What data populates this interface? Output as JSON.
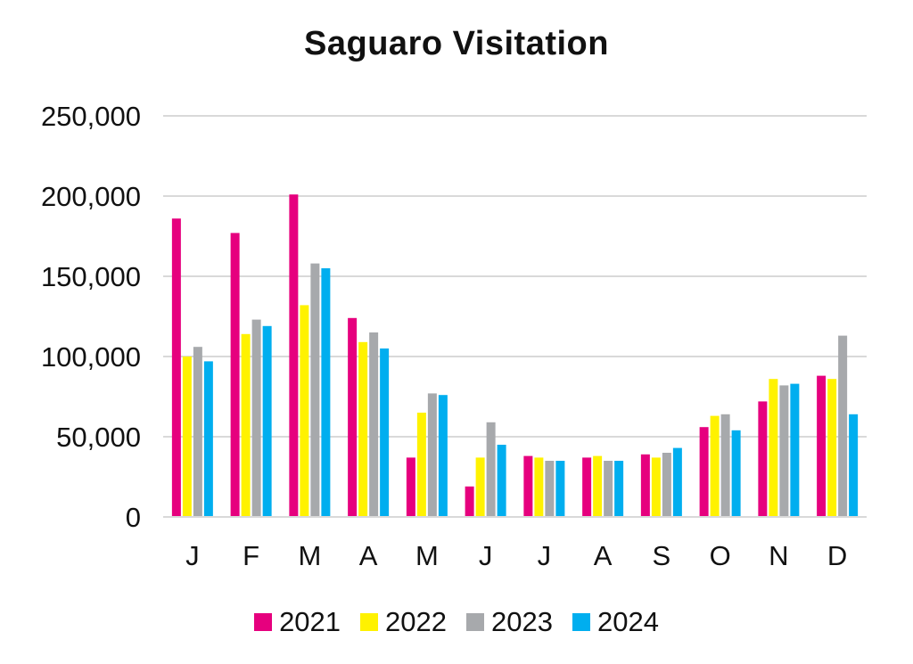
{
  "chart_data": {
    "type": "bar",
    "title": "Saguaro Visitation",
    "categories": [
      "J",
      "F",
      "M",
      "A",
      "M",
      "J",
      "J",
      "A",
      "S",
      "O",
      "N",
      "D"
    ],
    "ylim": [
      0,
      250000
    ],
    "yticks": [
      0,
      50000,
      100000,
      150000,
      200000,
      250000
    ],
    "ytick_labels": [
      "0",
      "50,000",
      "100,000",
      "150,000",
      "200,000",
      "250,000"
    ],
    "grid": true,
    "legend_position": "bottom",
    "series": [
      {
        "name": "2021",
        "color": "#e6007e",
        "values": [
          186000,
          177000,
          201000,
          124000,
          37000,
          19000,
          38000,
          37000,
          39000,
          56000,
          72000,
          88000
        ]
      },
      {
        "name": "2022",
        "color": "#fff200",
        "values": [
          100000,
          114000,
          132000,
          109000,
          65000,
          37000,
          37000,
          38000,
          37000,
          63000,
          86000,
          86000
        ]
      },
      {
        "name": "2023",
        "color": "#a7a9ac",
        "values": [
          106000,
          123000,
          158000,
          115000,
          77000,
          59000,
          35000,
          35000,
          40000,
          64000,
          82000,
          113000
        ]
      },
      {
        "name": "2024",
        "color": "#00aeef",
        "values": [
          97000,
          119000,
          155000,
          105000,
          76000,
          45000,
          35000,
          35000,
          43000,
          54000,
          83000,
          64000
        ]
      }
    ]
  }
}
